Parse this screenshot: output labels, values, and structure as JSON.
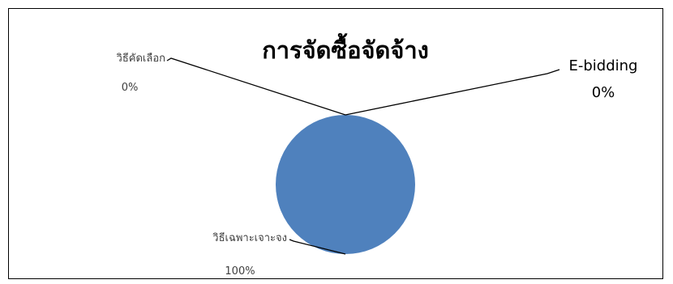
{
  "chart_data": {
    "type": "pie",
    "title": "การจัดซื้อจัดจ้าง",
    "categories": [
      "วิธีคัดเลือก",
      "E-bidding",
      "วิธีเฉพาะเจาะจง"
    ],
    "values": [
      0,
      0,
      100
    ],
    "percent_labels": [
      "0%",
      "0%",
      "100%"
    ],
    "legend": "none",
    "colors": {
      "slice": "#4f81bd"
    }
  }
}
